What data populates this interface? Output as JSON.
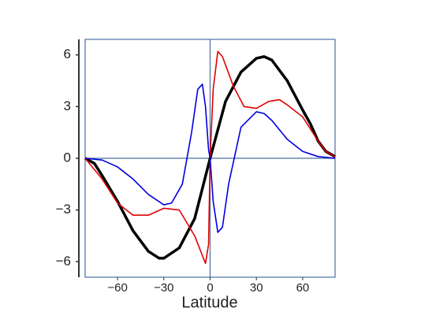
{
  "chart_data": {
    "type": "line",
    "x_label": "Latitude",
    "xlim": [
      -81,
      81
    ],
    "ylim": [
      -6.9,
      6.9
    ],
    "xticks": [
      {
        "value": -60,
        "label": "−60"
      },
      {
        "value": -30,
        "label": "−30"
      },
      0,
      30,
      60
    ],
    "yticks": [
      {
        "value": -6,
        "label": "−6"
      },
      {
        "value": -3,
        "label": "−3"
      },
      0,
      3,
      6
    ],
    "frame_color": "#4a6fa5",
    "series": [
      {
        "color": "#000000",
        "width": 3.5,
        "x": [
          -81,
          -75,
          -70,
          -60,
          -50,
          -40,
          -33,
          -30,
          -20,
          -10,
          0,
          10,
          20,
          30,
          35,
          40,
          50,
          60,
          65,
          70,
          75,
          81
        ],
        "values": [
          0,
          -0.3,
          -1,
          -2.5,
          -4.2,
          -5.4,
          -5.8,
          -5.8,
          -5.2,
          -3.5,
          0,
          3.3,
          5,
          5.8,
          5.9,
          5.7,
          4.5,
          2.8,
          2,
          1,
          0.4,
          0.1
        ]
      },
      {
        "color": "#e00000",
        "width": 1.6,
        "x": [
          -81,
          -70,
          -60,
          -50,
          -40,
          -30,
          -20,
          -10,
          -3,
          -1,
          0,
          2,
          5,
          8,
          15,
          22,
          30,
          38,
          45,
          50,
          60,
          70,
          75,
          81
        ],
        "values": [
          0,
          -1.2,
          -2.6,
          -3.3,
          -3.3,
          -2.9,
          -3.0,
          -4.5,
          -6.1,
          -5,
          0,
          4,
          6.2,
          5.9,
          4.2,
          3,
          2.9,
          3.3,
          3.4,
          3.1,
          2.4,
          1.0,
          0.4,
          0.1
        ]
      },
      {
        "color": "#0000e0",
        "width": 1.6,
        "x": [
          -81,
          -70,
          -60,
          -50,
          -40,
          -30,
          -25,
          -18,
          -12,
          -8,
          -5,
          -3,
          -1,
          0,
          2,
          5,
          8,
          12,
          20,
          30,
          35,
          40,
          50,
          60,
          70,
          81
        ],
        "values": [
          0,
          -0.1,
          -0.5,
          -1.2,
          -2.1,
          -2.7,
          -2.6,
          -1.5,
          1.5,
          4,
          4.3,
          3,
          0.5,
          0,
          -2.5,
          -4.3,
          -4,
          -1.5,
          1.8,
          2.7,
          2.6,
          2.2,
          1.1,
          0.4,
          0.1,
          0
        ]
      }
    ]
  }
}
